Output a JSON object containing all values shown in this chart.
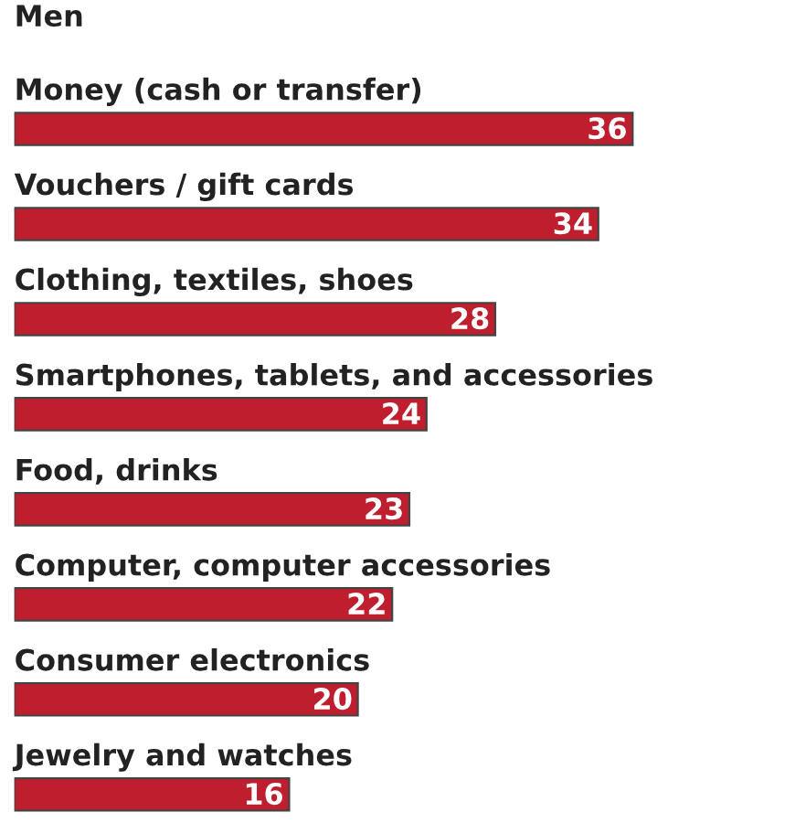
{
  "chart_data": {
    "type": "bar",
    "orientation": "horizontal",
    "title": "Men",
    "categories": [
      "Money (cash or transfer)",
      "Vouchers / gift cards",
      "Clothing, textiles, shoes",
      "Smartphones, tablets, and accessories",
      "Food, drinks",
      "Computer, computer accessories",
      "Consumer electronics",
      "Jewelry and watches"
    ],
    "values": [
      36,
      34,
      28,
      24,
      23,
      22,
      20,
      16
    ],
    "color": "#be1e2d",
    "data_labels": true
  }
}
